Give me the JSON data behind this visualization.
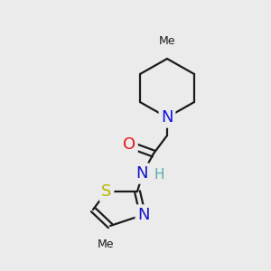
{
  "background_color": "#ebebeb",
  "bond_color": "#1a1a1a",
  "figsize": [
    3.0,
    3.0
  ],
  "dpi": 100,
  "xlim": [
    0,
    300
  ],
  "ylim": [
    0,
    300
  ],
  "N_pip_color": "#1414e0",
  "O_color": "#e61414",
  "N_amide_color": "#1414c8",
  "H_amide_color": "#55aaaa",
  "S_color": "#b8b800",
  "N_thz_color": "#1414c8",
  "Me_color": "#1a1a1a"
}
